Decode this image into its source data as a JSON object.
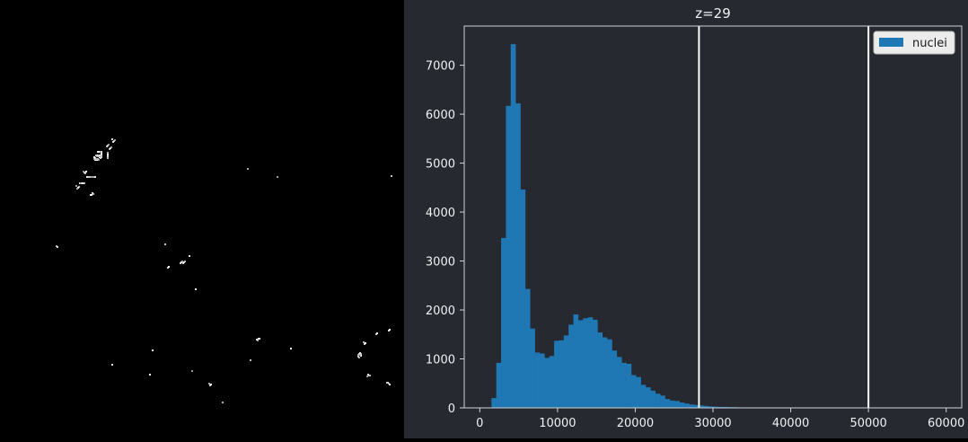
{
  "colors": {
    "panel_bg": "#262930",
    "bar": "#1f77b4",
    "axis": "#d0d2d6",
    "threshold": "#ffffff",
    "text": "#f0f1f2"
  },
  "viewer": {
    "description_icon": "microscopy-image"
  },
  "splitter": {
    "icon": "vertical-dots-handle-icon"
  },
  "chart_data": {
    "type": "bar",
    "title": "z=29",
    "xlabel": "",
    "ylabel": "",
    "xlim": [
      -2000,
      62000
    ],
    "ylim": [
      0,
      7800
    ],
    "xticks": [
      0,
      10000,
      20000,
      30000,
      40000,
      50000,
      60000
    ],
    "yticks": [
      0,
      1000,
      2000,
      3000,
      4000,
      5000,
      6000,
      7000
    ],
    "legend": {
      "position": "top-right",
      "entries": [
        "nuclei"
      ]
    },
    "grid": false,
    "bin_width": 620,
    "series": [
      {
        "name": "nuclei",
        "x": [
          1500,
          2120,
          2740,
          3360,
          3980,
          4600,
          5220,
          5840,
          6460,
          7080,
          7700,
          8320,
          8940,
          9560,
          10180,
          10800,
          11420,
          12040,
          12660,
          13280,
          13900,
          14520,
          15140,
          15760,
          16380,
          17000,
          17620,
          18240,
          18860,
          19480,
          20100,
          20720,
          21340,
          21960,
          22580,
          23200,
          23820,
          24440,
          25060,
          25680,
          26300,
          26920,
          27540,
          28160,
          28780,
          29400,
          30020,
          30640,
          31260,
          31880,
          32500,
          33120,
          33740,
          34360,
          34980,
          35600,
          36220,
          36840,
          37460,
          38080,
          38700,
          39320,
          39940
        ],
        "values": [
          200,
          920,
          3470,
          6170,
          7430,
          6220,
          4460,
          2430,
          1620,
          1130,
          1110,
          1020,
          1060,
          1370,
          1380,
          1480,
          1700,
          1910,
          1790,
          1830,
          1850,
          1800,
          1540,
          1440,
          1400,
          1170,
          1040,
          920,
          900,
          670,
          630,
          470,
          420,
          350,
          290,
          250,
          180,
          150,
          140,
          110,
          90,
          70,
          60,
          50,
          40,
          30,
          25,
          20,
          20,
          15,
          15,
          10,
          10,
          8,
          8,
          6,
          8,
          6,
          5,
          10,
          5,
          8,
          4
        ]
      }
    ],
    "threshold_lines": [
      28200,
      50000
    ]
  }
}
